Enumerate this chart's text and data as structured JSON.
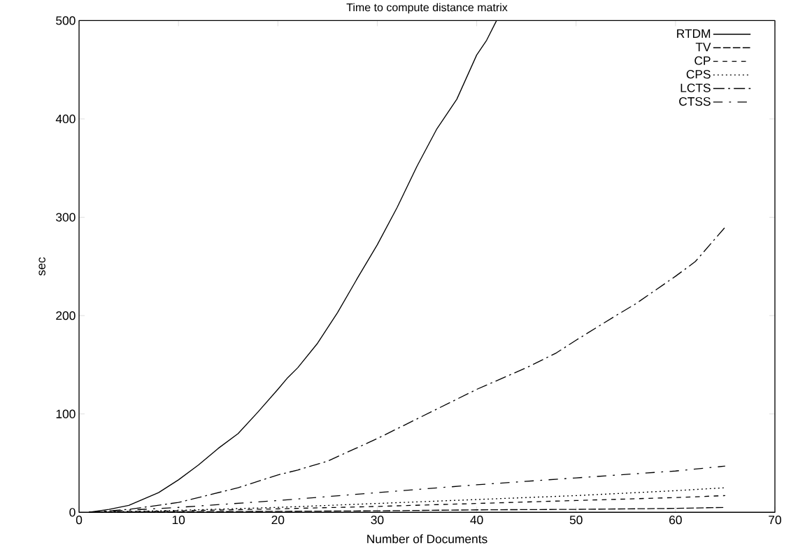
{
  "chart_data": {
    "type": "line",
    "title": "Time to compute distance matrix",
    "xlabel": "Number of Documents",
    "ylabel": "sec",
    "xlim": [
      0,
      70
    ],
    "ylim": [
      0,
      500
    ],
    "xticks": [
      0,
      10,
      20,
      30,
      40,
      50,
      60,
      70
    ],
    "yticks": [
      0,
      100,
      200,
      300,
      400,
      500
    ],
    "legend": "top right",
    "grid": false,
    "series": [
      {
        "name": "RTDM",
        "color": "#000000",
        "line_style": "solid",
        "x": [
          1,
          3,
          5,
          8,
          10,
          12,
          14,
          16,
          18,
          20,
          21,
          22,
          24,
          26,
          28,
          30,
          32,
          34,
          36,
          37,
          38,
          40,
          41,
          42
        ],
        "values": [
          0,
          3,
          7,
          20,
          33,
          48,
          65,
          80,
          102,
          125,
          137,
          147,
          172,
          203,
          238,
          272,
          310,
          352,
          390,
          405,
          420,
          465,
          480,
          500
        ]
      },
      {
        "name": "TV",
        "color": "#000000",
        "line_style": "longdashed",
        "x": [
          1,
          10,
          20,
          30,
          40,
          50,
          60,
          65
        ],
        "values": [
          0,
          0.5,
          1,
          1.5,
          2.5,
          3,
          4,
          5
        ]
      },
      {
        "name": "CP",
        "color": "#000000",
        "line_style": "dashed",
        "x": [
          1,
          10,
          20,
          30,
          40,
          50,
          60,
          65
        ],
        "values": [
          0,
          1.5,
          3.5,
          6,
          9,
          12,
          15,
          17
        ]
      },
      {
        "name": "CPS",
        "color": "#000000",
        "line_style": "dotted",
        "x": [
          1,
          10,
          20,
          30,
          40,
          50,
          60,
          65
        ],
        "values": [
          0,
          2,
          5,
          9,
          13,
          17,
          22,
          25
        ]
      },
      {
        "name": "LCTS",
        "color": "#000000",
        "line_style": "dashdotted",
        "x": [
          1,
          5,
          10,
          16,
          20,
          22,
          25,
          30,
          35,
          40,
          45,
          48,
          50,
          54,
          56,
          60,
          62,
          65
        ],
        "values": [
          0,
          3,
          10,
          25,
          38,
          43,
          52,
          75,
          100,
          125,
          147,
          162,
          175,
          200,
          212,
          240,
          255,
          290
        ]
      },
      {
        "name": "CTSS",
        "color": "#000000",
        "line_style": "loosely dashdotted",
        "x": [
          1,
          10,
          20,
          30,
          40,
          50,
          60,
          65
        ],
        "values": [
          0,
          5,
          12,
          20,
          28,
          35,
          42,
          47
        ]
      }
    ]
  }
}
